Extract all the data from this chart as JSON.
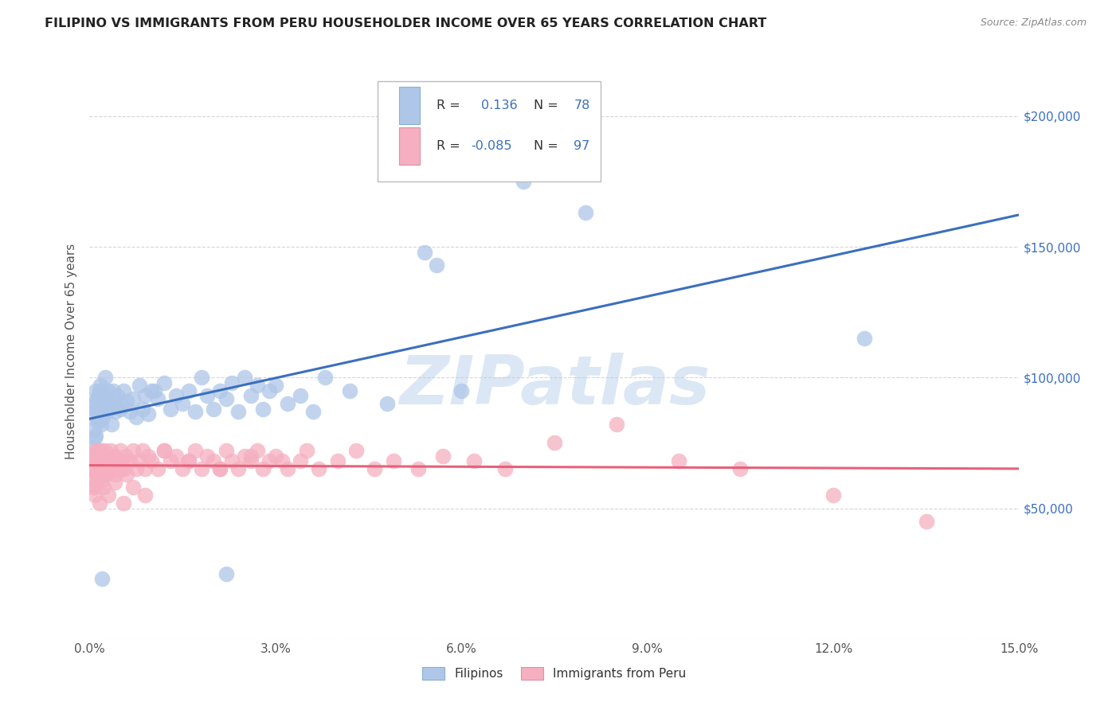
{
  "title": "FILIPINO VS IMMIGRANTS FROM PERU HOUSEHOLDER INCOME OVER 65 YEARS CORRELATION CHART",
  "source": "Source: ZipAtlas.com",
  "ylabel": "Householder Income Over 65 years",
  "ylabel_ticks": [
    0,
    50000,
    100000,
    150000,
    200000
  ],
  "ylabel_labels": [
    "",
    "$50,000",
    "$100,000",
    "$150,000",
    "$200,000"
  ],
  "xlim": [
    0.0,
    15.0
  ],
  "ylim": [
    0,
    220000
  ],
  "filipino_R": 0.136,
  "filipino_N": 78,
  "peru_R": -0.085,
  "peru_N": 97,
  "filipino_color": "#aec6e8",
  "peru_color": "#f5afc0",
  "filipino_line_color": "#3b6fbe",
  "peru_line_color": "#e8607a",
  "background_color": "#ffffff",
  "grid_color": "#cccccc",
  "watermark": "ZIPatlas",
  "watermark_color": "#b8d0ea",
  "legend_label_1": "Filipinos",
  "legend_label_2": "Immigrants from Peru",
  "title_color": "#222222",
  "source_color": "#888888",
  "tick_color": "#555555",
  "right_tick_color": "#3b6fbe"
}
